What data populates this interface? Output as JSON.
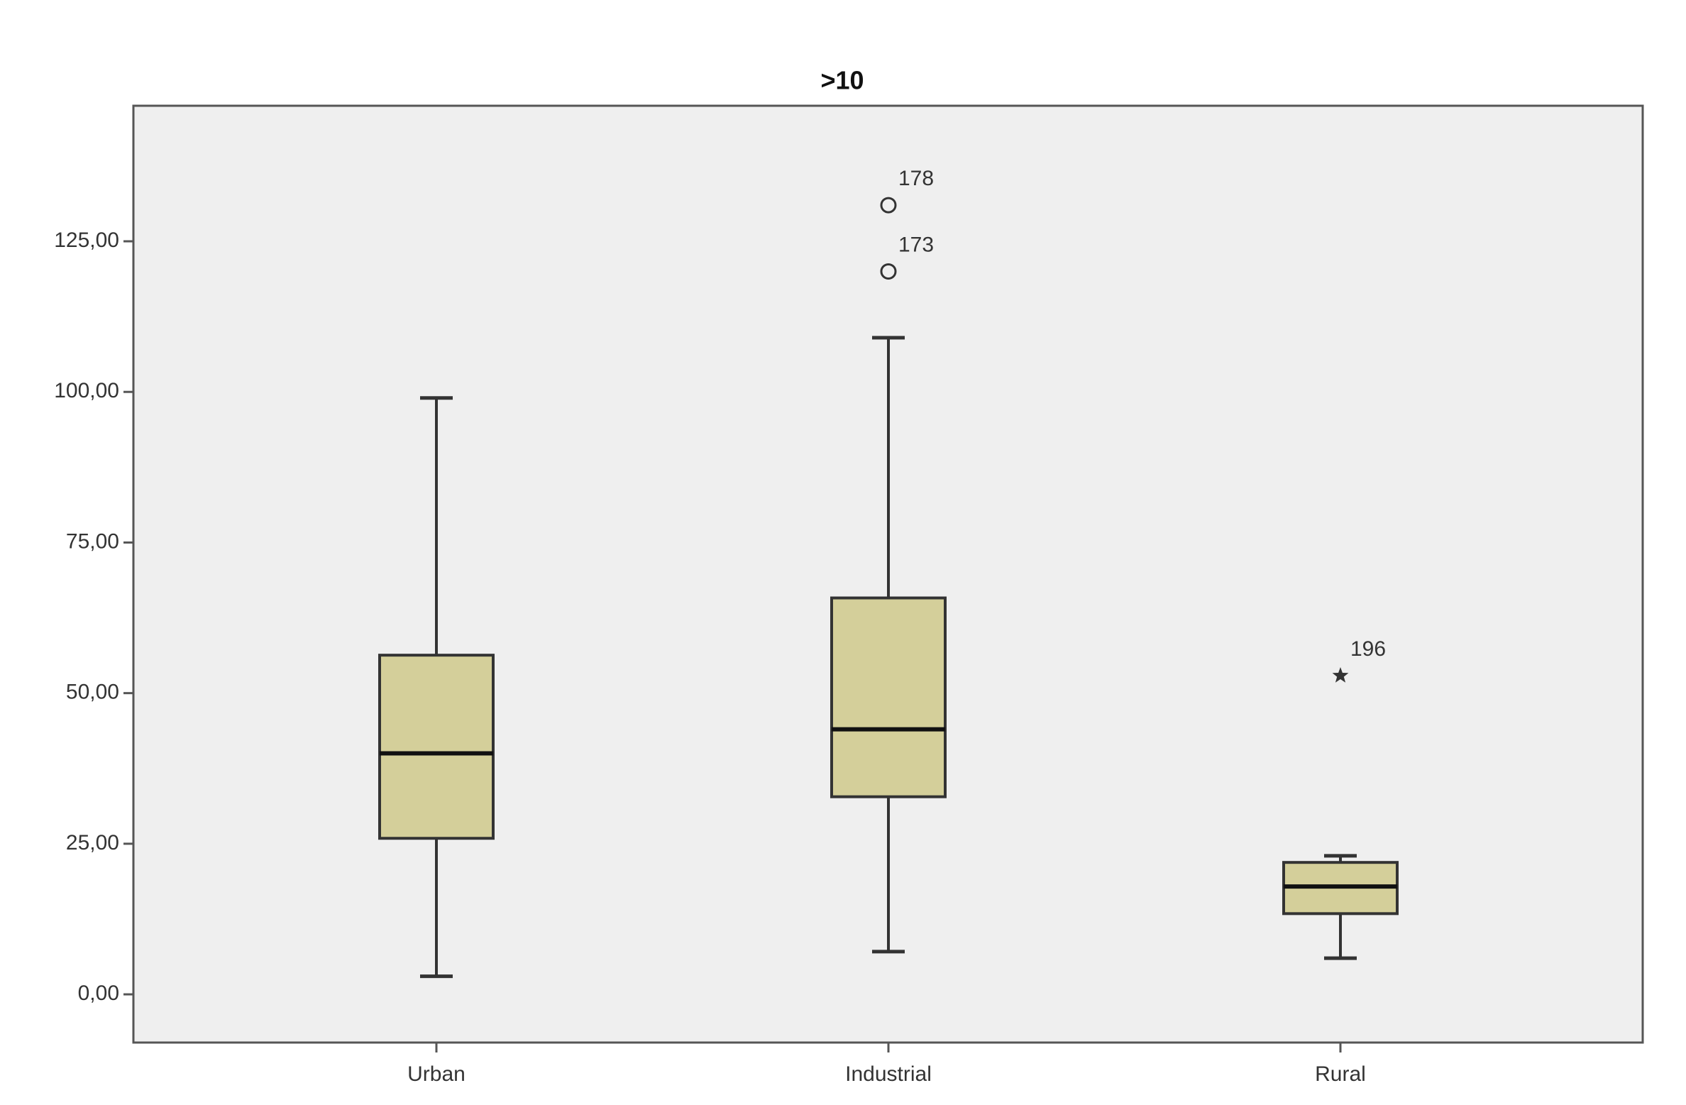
{
  "chart_data": {
    "type": "boxplot",
    "title": ">10",
    "categories": [
      "Urban",
      "Industrial",
      "Rural"
    ],
    "boxes": [
      {
        "min": 3,
        "q1": 25.9,
        "median": 40,
        "q3": 56.3,
        "max": 99
      },
      {
        "min": 7.1,
        "q1": 32.8,
        "median": 44,
        "q3": 65.8,
        "max": 109
      },
      {
        "min": 6,
        "q1": 13.4,
        "median": 17.9,
        "q3": 21.9,
        "max": 23
      }
    ],
    "outliers": [
      {
        "category": 1,
        "value": 131,
        "label": "178",
        "marker": "circle"
      },
      {
        "category": 1,
        "value": 120,
        "label": "173",
        "marker": "circle"
      },
      {
        "category": 2,
        "value": 52.9,
        "label": "196",
        "marker": "star"
      }
    ],
    "color": "#d4cf9a",
    "ylim": [
      -8,
      147.5
    ],
    "yticks": [
      {
        "value": 0,
        "label": "0,00"
      },
      {
        "value": 25,
        "label": "25,00"
      },
      {
        "value": 50,
        "label": "50,00"
      },
      {
        "value": 75,
        "label": "75,00"
      },
      {
        "value": 100,
        "label": "100,00"
      },
      {
        "value": 125,
        "label": "125,00"
      }
    ]
  }
}
